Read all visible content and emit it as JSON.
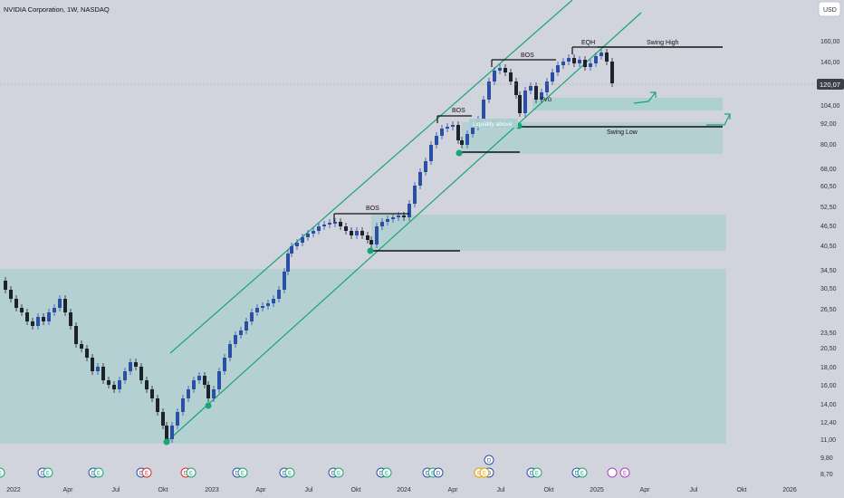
{
  "title": "NVIDIA Corporation, 1W, NASDAQ",
  "currency_badge": "USD",
  "last_price_label": "120,07",
  "colors": {
    "background": "#d1d4dc",
    "up_candle": "#2b4fa3",
    "down_candle": "#1e222d",
    "channel": "#17a673",
    "zone": "#a9cfcf",
    "level_line": "#111111",
    "price_badge": "#3a3f4a"
  },
  "chart_data": {
    "type": "candlestick",
    "scale": "log",
    "y_ticks": [
      "160,00",
      "140,00",
      "120,00",
      "104,00",
      "92,00",
      "80,00",
      "68,00",
      "60,50",
      "52,50",
      "46,50",
      "40,50",
      "34,50",
      "30,50",
      "26,50",
      "23,50",
      "20,50",
      "18,00",
      "16,00",
      "14,00",
      "12,40",
      "11,00",
      "9,80",
      "8,70"
    ],
    "x_ticks": [
      "2022",
      "Apr",
      "Jul",
      "Okt",
      "2023",
      "Apr",
      "Jul",
      "Okt",
      "2024",
      "Apr",
      "Jul",
      "Okt",
      "2025",
      "Apr",
      "Jul",
      "Okt",
      "2026"
    ],
    "annotations": {
      "bos_labels": [
        "BOS",
        "BOS",
        "BOS"
      ],
      "eqh": "EQH",
      "swing_high": "Swing High",
      "swing_low": "Swing Low",
      "liquidity": "Liquidity above",
      "fvg_hint": "FVG"
    },
    "event_markers": [
      "E",
      "D",
      "E",
      "D",
      "E",
      "D",
      "E",
      "D",
      "E",
      "D",
      "E",
      "D",
      "E",
      "D",
      "E",
      "D",
      "E",
      "D",
      "E",
      "D",
      "D",
      "E",
      "E",
      "D",
      "E",
      "D",
      "E",
      "E"
    ]
  }
}
